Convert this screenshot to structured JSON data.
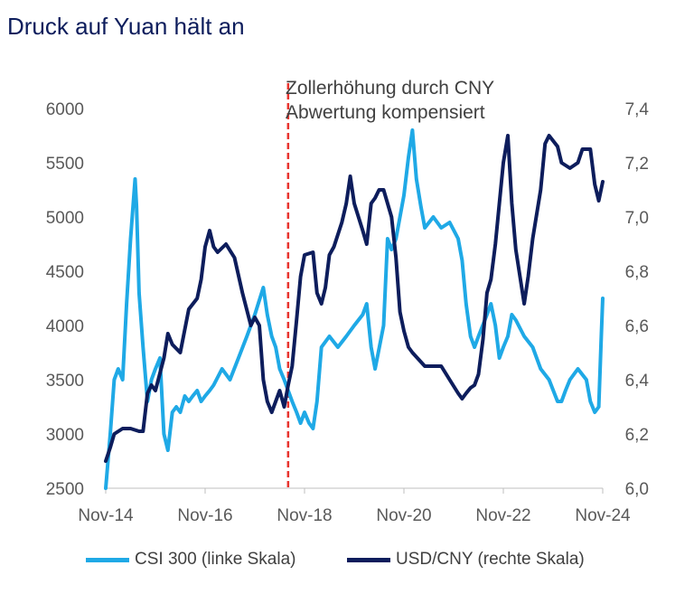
{
  "title": "Druck auf Yuan hält an",
  "chart_data": {
    "type": "line",
    "title": "Druck auf Yuan hält an",
    "x_ticks": [
      "Nov-14",
      "Nov-16",
      "Nov-18",
      "Nov-20",
      "Nov-22",
      "Nov-24"
    ],
    "x_range": [
      2014.83,
      2024.83
    ],
    "y_left": {
      "ticks": [
        "2500",
        "3000",
        "3500",
        "4000",
        "4500",
        "5000",
        "5500",
        "6000"
      ],
      "range": [
        2500,
        6000
      ]
    },
    "y_right": {
      "ticks": [
        "6,0",
        "6,2",
        "6,4",
        "6,6",
        "6,8",
        "7,0",
        "7,2",
        "7,4"
      ],
      "range": [
        6.0,
        7.4
      ]
    },
    "annotation": {
      "lines": [
        "Zollerhöhung durch CNY",
        "Abwertung kompensiert"
      ],
      "x": 2018.5,
      "color": "#e8342e"
    },
    "series": [
      {
        "name": "CSI 300 (linke Skala)",
        "axis": "left",
        "color": "#1fa9e6",
        "x": [
          2014.83,
          2014.92,
          2015.0,
          2015.08,
          2015.17,
          2015.25,
          2015.33,
          2015.42,
          2015.45,
          2015.5,
          2015.58,
          2015.67,
          2015.75,
          2015.83,
          2015.92,
          2016.0,
          2016.08,
          2016.17,
          2016.25,
          2016.33,
          2016.42,
          2016.5,
          2016.58,
          2016.67,
          2016.75,
          2016.83,
          2016.92,
          2017.0,
          2017.17,
          2017.33,
          2017.5,
          2017.67,
          2017.83,
          2018.0,
          2018.08,
          2018.17,
          2018.25,
          2018.33,
          2018.42,
          2018.5,
          2018.58,
          2018.67,
          2018.75,
          2018.83,
          2018.92,
          2019.0,
          2019.08,
          2019.17,
          2019.33,
          2019.5,
          2019.67,
          2019.83,
          2020.0,
          2020.08,
          2020.17,
          2020.25,
          2020.42,
          2020.5,
          2020.58,
          2020.67,
          2020.75,
          2020.83,
          2020.92,
          2021.0,
          2021.08,
          2021.17,
          2021.25,
          2021.42,
          2021.58,
          2021.75,
          2021.92,
          2022.0,
          2022.08,
          2022.17,
          2022.25,
          2022.33,
          2022.5,
          2022.58,
          2022.67,
          2022.75,
          2022.83,
          2022.92,
          2023.0,
          2023.08,
          2023.25,
          2023.42,
          2023.58,
          2023.75,
          2023.92,
          2024.0,
          2024.08,
          2024.17,
          2024.33,
          2024.5,
          2024.58,
          2024.67,
          2024.75,
          2024.8,
          2024.83
        ],
        "values": [
          2500,
          3000,
          3500,
          3600,
          3500,
          4200,
          4800,
          5350,
          5100,
          4300,
          3800,
          3300,
          3500,
          3600,
          3700,
          3000,
          2850,
          3200,
          3250,
          3200,
          3350,
          3300,
          3350,
          3400,
          3300,
          3350,
          3400,
          3450,
          3600,
          3500,
          3700,
          3900,
          4100,
          4350,
          4100,
          3900,
          3800,
          3600,
          3500,
          3400,
          3300,
          3200,
          3100,
          3200,
          3100,
          3050,
          3300,
          3800,
          3900,
          3800,
          3900,
          4000,
          4100,
          4200,
          3800,
          3600,
          4000,
          4800,
          4700,
          4800,
          5000,
          5200,
          5550,
          5800,
          5350,
          5100,
          4900,
          5000,
          4900,
          4950,
          4800,
          4600,
          4200,
          3900,
          3800,
          3900,
          4100,
          4200,
          4000,
          3700,
          3800,
          3900,
          4100,
          4050,
          3900,
          3800,
          3600,
          3500,
          3300,
          3300,
          3400,
          3500,
          3600,
          3500,
          3300,
          3200,
          3250,
          3900,
          4250
        ]
      },
      {
        "name": "USD/CNY (rechte Skala)",
        "axis": "right",
        "color": "#0d1d5c",
        "x": [
          2014.83,
          2014.92,
          2015.0,
          2015.17,
          2015.33,
          2015.5,
          2015.58,
          2015.67,
          2015.75,
          2015.83,
          2016.0,
          2016.08,
          2016.17,
          2016.33,
          2016.5,
          2016.67,
          2016.75,
          2016.83,
          2016.92,
          2017.0,
          2017.08,
          2017.25,
          2017.42,
          2017.58,
          2017.75,
          2017.83,
          2017.92,
          2018.0,
          2018.08,
          2018.17,
          2018.25,
          2018.33,
          2018.42,
          2018.5,
          2018.58,
          2018.67,
          2018.75,
          2018.83,
          2019.0,
          2019.08,
          2019.17,
          2019.25,
          2019.33,
          2019.42,
          2019.58,
          2019.67,
          2019.75,
          2019.83,
          2020.0,
          2020.08,
          2020.17,
          2020.25,
          2020.33,
          2020.42,
          2020.5,
          2020.58,
          2020.67,
          2020.75,
          2020.83,
          2020.92,
          2021.0,
          2021.25,
          2021.42,
          2021.58,
          2021.75,
          2021.92,
          2022.0,
          2022.08,
          2022.17,
          2022.25,
          2022.33,
          2022.42,
          2022.5,
          2022.58,
          2022.67,
          2022.75,
          2022.83,
          2022.92,
          2023.0,
          2023.08,
          2023.25,
          2023.33,
          2023.42,
          2023.58,
          2023.67,
          2023.75,
          2023.92,
          2024.0,
          2024.17,
          2024.33,
          2024.42,
          2024.5,
          2024.58,
          2024.67,
          2024.75,
          2024.83
        ],
        "values": [
          6.1,
          6.15,
          6.2,
          6.22,
          6.22,
          6.21,
          6.21,
          6.35,
          6.38,
          6.36,
          6.48,
          6.57,
          6.53,
          6.5,
          6.66,
          6.7,
          6.77,
          6.89,
          6.95,
          6.89,
          6.87,
          6.9,
          6.85,
          6.72,
          6.6,
          6.63,
          6.6,
          6.4,
          6.32,
          6.28,
          6.32,
          6.36,
          6.3,
          6.38,
          6.45,
          6.62,
          6.78,
          6.86,
          6.87,
          6.72,
          6.68,
          6.74,
          6.86,
          6.89,
          6.98,
          7.05,
          7.15,
          7.05,
          6.95,
          6.9,
          7.05,
          7.07,
          7.1,
          7.1,
          7.05,
          7.0,
          6.85,
          6.65,
          6.58,
          6.52,
          6.5,
          6.45,
          6.45,
          6.45,
          6.4,
          6.35,
          6.33,
          6.35,
          6.37,
          6.38,
          6.42,
          6.55,
          6.72,
          6.77,
          6.9,
          7.05,
          7.2,
          7.3,
          7.05,
          6.88,
          6.68,
          6.78,
          6.92,
          7.1,
          7.27,
          7.3,
          7.26,
          7.2,
          7.18,
          7.2,
          7.25,
          7.25,
          7.25,
          7.12,
          7.06,
          7.13
        ]
      }
    ],
    "legend": [
      {
        "label": "CSI 300 (linke Skala)",
        "color": "#1fa9e6"
      },
      {
        "label": "USD/CNY (rechte Skala)",
        "color": "#0d1d5c"
      }
    ]
  }
}
